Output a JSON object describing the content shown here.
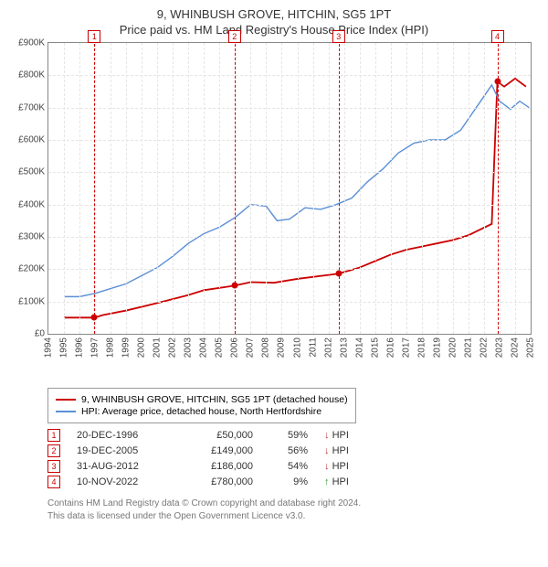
{
  "title_line1": "9, WHINBUSH GROVE, HITCHIN, SG5 1PT",
  "title_line2": "Price paid vs. HM Land Registry's House Price Index (HPI)",
  "chart": {
    "type": "line",
    "background_color": "#ffffff",
    "grid_color": "#e5e5e5",
    "axis_color": "#888888",
    "x": {
      "min": 1994,
      "max": 2025,
      "ticks": [
        1994,
        1995,
        1996,
        1997,
        1998,
        1999,
        2000,
        2001,
        2002,
        2003,
        2004,
        2005,
        2006,
        2007,
        2008,
        2009,
        2010,
        2011,
        2012,
        2013,
        2014,
        2015,
        2016,
        2017,
        2018,
        2019,
        2020,
        2021,
        2022,
        2023,
        2024,
        2025
      ]
    },
    "y": {
      "min": 0,
      "max": 900000,
      "tick_step": 100000,
      "tick_labels": [
        "£0",
        "£100K",
        "£200K",
        "£300K",
        "£400K",
        "£500K",
        "£600K",
        "£700K",
        "£800K",
        "£900K"
      ]
    },
    "series": [
      {
        "id": "property",
        "label": "9, WHINBUSH GROVE, HITCHIN, SG5 1PT (detached house)",
        "color": "#cc0000",
        "line_width": 1.8,
        "points": [
          [
            1995.0,
            50000
          ],
          [
            1996.96,
            50000
          ],
          [
            1997.5,
            58000
          ],
          [
            1999.0,
            72000
          ],
          [
            2001.0,
            95000
          ],
          [
            2003.0,
            120000
          ],
          [
            2004.0,
            135000
          ],
          [
            2005.96,
            149000
          ],
          [
            2007.0,
            160000
          ],
          [
            2008.5,
            158000
          ],
          [
            2010.0,
            170000
          ],
          [
            2012.66,
            186000
          ],
          [
            2014.0,
            205000
          ],
          [
            2015.0,
            225000
          ],
          [
            2016.0,
            245000
          ],
          [
            2017.0,
            260000
          ],
          [
            2018.0,
            270000
          ],
          [
            2019.0,
            280000
          ],
          [
            2020.0,
            290000
          ],
          [
            2021.0,
            305000
          ],
          [
            2022.5,
            340000
          ],
          [
            2022.86,
            780000
          ],
          [
            2023.3,
            765000
          ],
          [
            2024.0,
            790000
          ],
          [
            2024.7,
            765000
          ]
        ]
      },
      {
        "id": "hpi",
        "label": "HPI: Average price, detached house, North Hertfordshire",
        "color": "#5b8fd6",
        "line_width": 1.4,
        "points": [
          [
            1995.0,
            115000
          ],
          [
            1996.0,
            115000
          ],
          [
            1997.0,
            125000
          ],
          [
            1998.0,
            140000
          ],
          [
            1999.0,
            155000
          ],
          [
            2000.0,
            180000
          ],
          [
            2001.0,
            205000
          ],
          [
            2002.0,
            240000
          ],
          [
            2003.0,
            280000
          ],
          [
            2004.0,
            310000
          ],
          [
            2005.0,
            330000
          ],
          [
            2006.0,
            360000
          ],
          [
            2007.0,
            400000
          ],
          [
            2008.0,
            395000
          ],
          [
            2008.7,
            350000
          ],
          [
            2009.5,
            355000
          ],
          [
            2010.5,
            390000
          ],
          [
            2011.5,
            385000
          ],
          [
            2012.5,
            400000
          ],
          [
            2013.5,
            420000
          ],
          [
            2014.5,
            470000
          ],
          [
            2015.5,
            510000
          ],
          [
            2016.5,
            560000
          ],
          [
            2017.5,
            590000
          ],
          [
            2018.5,
            600000
          ],
          [
            2019.5,
            600000
          ],
          [
            2020.5,
            630000
          ],
          [
            2021.5,
            700000
          ],
          [
            2022.5,
            770000
          ],
          [
            2023.0,
            720000
          ],
          [
            2023.7,
            695000
          ],
          [
            2024.3,
            720000
          ],
          [
            2024.9,
            700000
          ]
        ]
      }
    ],
    "sale_markers": [
      {
        "n": "1",
        "x": 1996.96,
        "y": 50000
      },
      {
        "n": "2",
        "x": 2005.96,
        "y": 149000
      },
      {
        "n": "3",
        "x": 2012.66,
        "y": 186000
      },
      {
        "n": "4",
        "x": 2022.86,
        "y": 780000
      }
    ],
    "marker_color": "#cc0000",
    "dot_color": "#cc0000"
  },
  "legend": [
    {
      "color": "#cc0000",
      "label": "9, WHINBUSH GROVE, HITCHIN, SG5 1PT (detached house)"
    },
    {
      "color": "#5b8fd6",
      "label": "HPI: Average price, detached house, North Hertfordshire"
    }
  ],
  "sales": [
    {
      "n": "1",
      "date": "20-DEC-1996",
      "price": "£50,000",
      "pct": "59%",
      "arrow": "↓",
      "dir_label": "HPI",
      "dir_color": "#cc3333"
    },
    {
      "n": "2",
      "date": "19-DEC-2005",
      "price": "£149,000",
      "pct": "56%",
      "arrow": "↓",
      "dir_label": "HPI",
      "dir_color": "#cc3333"
    },
    {
      "n": "3",
      "date": "31-AUG-2012",
      "price": "£186,000",
      "pct": "54%",
      "arrow": "↓",
      "dir_label": "HPI",
      "dir_color": "#cc3333"
    },
    {
      "n": "4",
      "date": "10-NOV-2022",
      "price": "£780,000",
      "pct": "9%",
      "arrow": "↑",
      "dir_label": "HPI",
      "dir_color": "#2e9e2e"
    }
  ],
  "attribution_line1": "Contains HM Land Registry data © Crown copyright and database right 2024.",
  "attribution_line2": "This data is licensed under the Open Government Licence v3.0."
}
